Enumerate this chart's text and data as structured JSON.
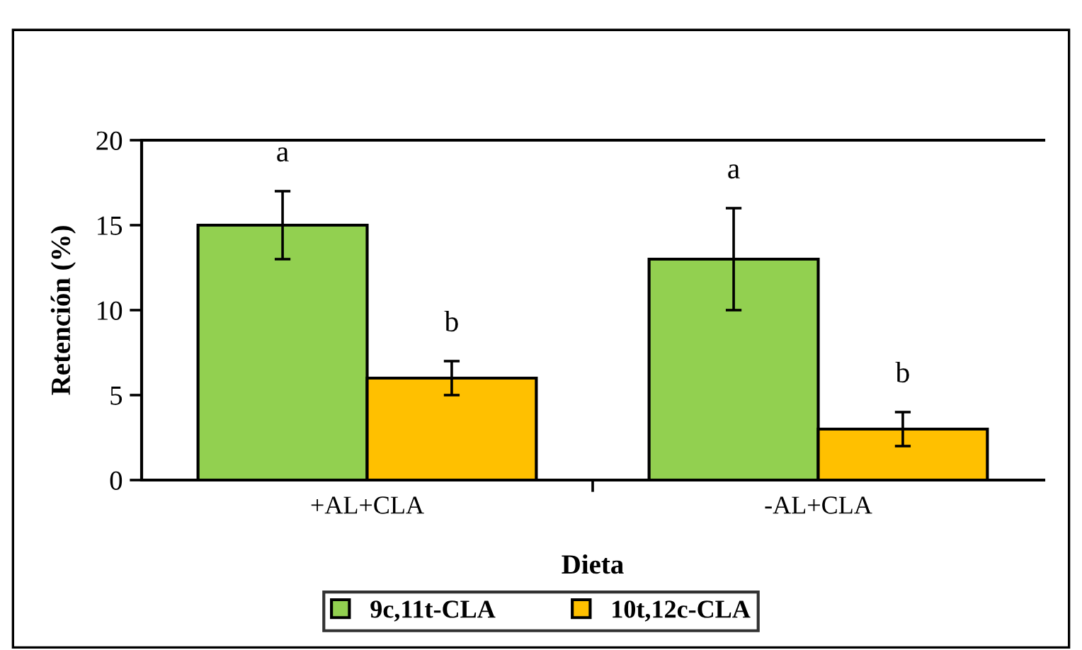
{
  "chart_data": {
    "type": "bar",
    "xlabel": "Dieta",
    "ylabel": "Retención (%)",
    "categories": [
      "+AL+CLA",
      "-AL+CLA"
    ],
    "series": [
      {
        "name": "9c,11t-CLA",
        "color": "#92d050",
        "values": [
          15,
          13
        ],
        "errors": [
          2,
          3
        ]
      },
      {
        "name": "10t,12c-CLA",
        "color": "#ffc000",
        "values": [
          6,
          3
        ],
        "errors": [
          1,
          1
        ]
      }
    ],
    "ylim": [
      0,
      20
    ],
    "yticks": [
      0,
      5,
      10,
      15,
      20
    ],
    "grid": false,
    "legend": "bottom",
    "annotations": [
      "a",
      "b",
      "a",
      "b"
    ]
  }
}
